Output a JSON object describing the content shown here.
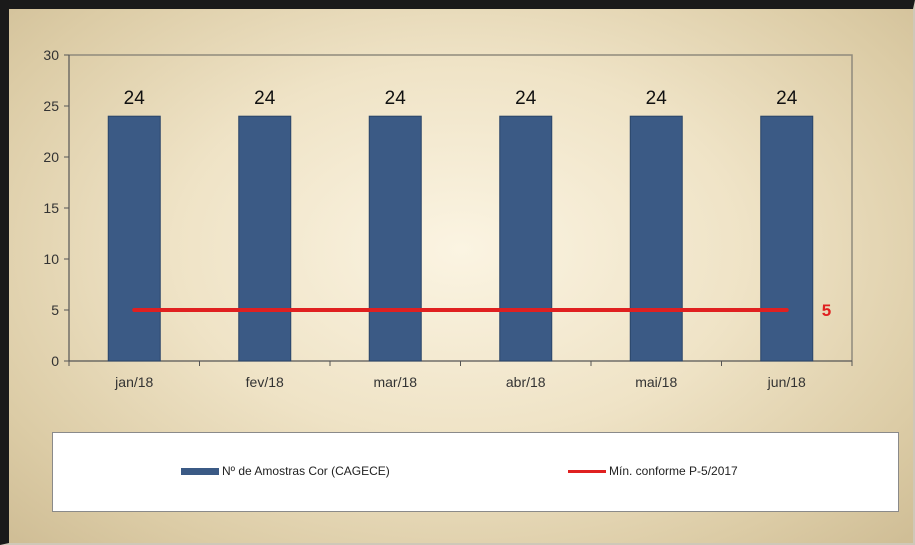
{
  "chart_data": {
    "type": "bar",
    "categories": [
      "jan/18",
      "fev/18",
      "mar/18",
      "abr/18",
      "mai/18",
      "jun/18"
    ],
    "series": [
      {
        "name": "Nº de Amostras Cor (CAGECE)",
        "type": "bar",
        "values": [
          24,
          24,
          24,
          24,
          24,
          24
        ],
        "color": "#3b5a85"
      },
      {
        "name": "Mín. conforme P-5/2017",
        "type": "line",
        "values": [
          5,
          5,
          5,
          5,
          5,
          5
        ],
        "color": "#e02020"
      }
    ],
    "ylim": [
      0,
      30
    ],
    "yticks": [
      "0",
      "5",
      "10",
      "15",
      "20",
      "25",
      "30"
    ],
    "data_labels": [
      "24",
      "24",
      "24",
      "24",
      "24",
      "24"
    ],
    "line_end_label": "5",
    "grid": false,
    "legend_position": "bottom",
    "title": "",
    "xlabel": "",
    "ylabel": ""
  }
}
